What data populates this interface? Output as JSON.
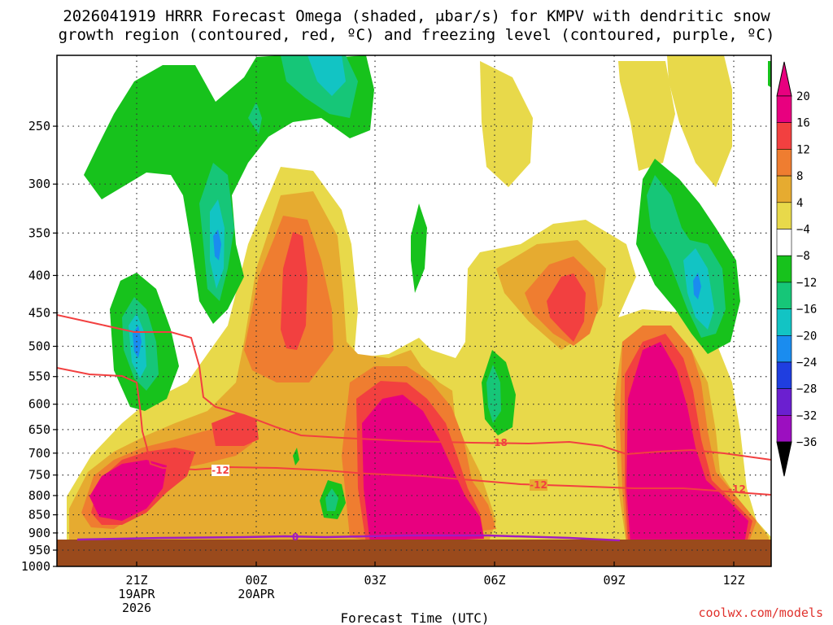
{
  "title_line1": "2026041919 HRRR Forecast Omega (shaded, μbar/s) for KMPV with dendritic snow",
  "title_line2": "growth region (contoured, red, ºC) and freezing level (contoured, purple, ºC)",
  "xlabel": "Forecast Time (UTC)",
  "credit": "coolwx.com/models",
  "colors": {
    "c20": "#e8007f",
    "c16": "#f24040",
    "c12": "#ef7d30",
    "c8": "#e6ab30",
    "c4": "#e8d94a",
    "n4": "#17c21c",
    "n8": "#16c678",
    "n12": "#12c4c4",
    "n16": "#1a8cef",
    "n20": "#1f3ee0",
    "n24": "#6b1fd0",
    "n28": "#9c0fc0",
    "n32": "#a9a9a9",
    "ground": "#9a4a1c",
    "dendritic": "#f24040",
    "freezing": "#a11cc0"
  },
  "chart_data": {
    "type": "heatmap",
    "variable": "Omega (μbar/s)",
    "ylabel": "",
    "y_axis": {
      "scale": "log",
      "reversed": true,
      "range": [
        1000,
        200
      ],
      "ticks": [
        250,
        300,
        350,
        400,
        450,
        500,
        550,
        600,
        650,
        700,
        750,
        800,
        850,
        900,
        950,
        1000
      ]
    },
    "x_axis": {
      "ticks": [
        {
          "label": "21Z",
          "sub": [
            "19APR",
            "2026"
          ]
        },
        {
          "label": "00Z",
          "sub": [
            "20APR"
          ]
        },
        {
          "label": "03Z",
          "sub": []
        },
        {
          "label": "06Z",
          "sub": []
        },
        {
          "label": "09Z",
          "sub": []
        },
        {
          "label": "12Z",
          "sub": []
        }
      ]
    },
    "colorbar": {
      "labels": [
        "20",
        "16",
        "12",
        "8",
        "4",
        "−4",
        "−8",
        "−12",
        "−16",
        "−20",
        "−24",
        "−28",
        "−32",
        "−36"
      ]
    },
    "contours": [
      {
        "name": "dendritic snow growth region",
        "labels": [
          "-12",
          "-12",
          "-12",
          "-18"
        ]
      },
      {
        "name": "freezing level",
        "labels": [
          "0"
        ]
      }
    ],
    "grid": true
  }
}
